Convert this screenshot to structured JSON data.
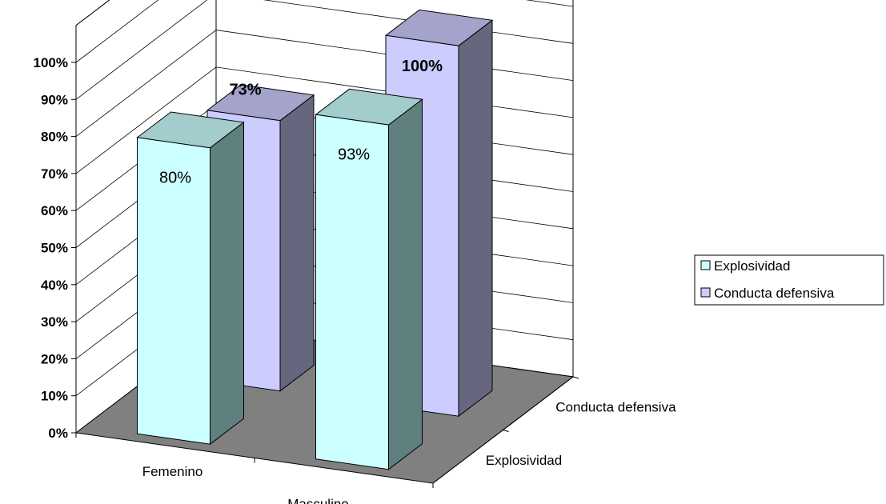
{
  "chart_data": {
    "type": "bar",
    "categories": [
      "Femenino",
      "Masculino"
    ],
    "depth_categories": [
      "Explosividad",
      "Conducta defensiva"
    ],
    "series": [
      {
        "name": "Explosividad",
        "values": [
          80,
          93
        ],
        "labels": [
          "80%",
          "93%"
        ],
        "label_bold": false
      },
      {
        "name": "Conducta defensiva",
        "values": [
          73,
          100
        ],
        "labels": [
          "73%",
          "100%"
        ],
        "label_bold": true
      }
    ],
    "ylim": [
      0,
      100
    ],
    "y_ticks": [
      "0%",
      "10%",
      "20%",
      "30%",
      "40%",
      "50%",
      "60%",
      "70%",
      "80%",
      "90%",
      "100%"
    ],
    "grid": true,
    "legend_position": "right",
    "colors": {
      "Explosividad": {
        "front": "#CCFFFF",
        "side": "#5F807F",
        "top": "#A3CCCC"
      },
      "Conducta defensiva": {
        "front": "#CCCCFF",
        "side": "#66667F",
        "top": "#A3A3CC"
      },
      "floor": "#808080"
    }
  }
}
